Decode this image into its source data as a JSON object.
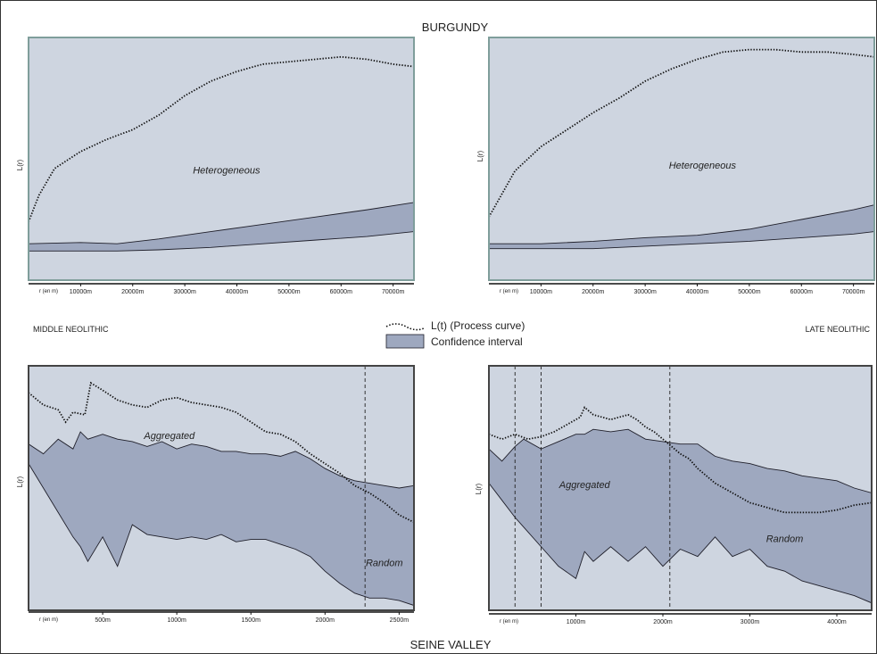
{
  "titles": {
    "top": "BURGUNDY",
    "bottom": "SEINE VALLEY",
    "period_left": "MIDDLE NEOLITHIC",
    "period_right": "LATE NEOLITHIC"
  },
  "legend": {
    "curve_label": "L(t) (Process curve)",
    "band_label": "Confidence interval"
  },
  "colors": {
    "plot_bg": "#ced5e0",
    "band_fill": "#9ea8bf",
    "band_stroke": "#1f1f2a",
    "frame_top": "#7f9e9b",
    "frame_bottom": "#444444"
  },
  "chart_data": [
    {
      "id": "burgundy-middle",
      "type": "area",
      "title": "",
      "ylabel": "L(r)",
      "x_unit_label": "r (en m)",
      "xlim": [
        0,
        74000
      ],
      "ylim": [
        0,
        100
      ],
      "ticks": [
        10000,
        20000,
        30000,
        40000,
        50000,
        60000,
        70000
      ],
      "tick_labels": [
        "10000m",
        "20000m",
        "30000m",
        "40000m",
        "50000m",
        "60000m",
        "70000m"
      ],
      "annotations": [
        {
          "text": "Heterogeneous",
          "x": 38000,
          "y": 44
        }
      ],
      "dashed_lines": [],
      "series": [
        {
          "name": "L(t) (Process curve)",
          "x": [
            0,
            2000,
            5000,
            10000,
            15000,
            20000,
            25000,
            30000,
            35000,
            40000,
            45000,
            50000,
            55000,
            60000,
            65000,
            70000,
            74000
          ],
          "y": [
            24,
            35,
            46,
            53,
            58,
            62,
            68,
            76,
            82,
            86,
            89,
            90,
            91,
            92,
            91,
            89,
            88
          ]
        },
        {
          "name": "Confidence interval",
          "x": [
            0,
            10000,
            17000,
            25000,
            35000,
            45000,
            55000,
            65000,
            74000
          ],
          "upper": [
            15,
            15.5,
            15,
            17,
            20,
            23,
            26,
            29,
            32
          ],
          "lower": [
            12,
            12,
            12,
            12.5,
            13.5,
            15,
            16.5,
            18,
            20
          ]
        }
      ]
    },
    {
      "id": "burgundy-late",
      "type": "area",
      "title": "",
      "ylabel": "L(r)",
      "x_unit_label": "r (en m)",
      "xlim": [
        0,
        74000
      ],
      "ylim": [
        0,
        100
      ],
      "ticks": [
        10000,
        20000,
        30000,
        40000,
        50000,
        60000,
        70000
      ],
      "tick_labels": [
        "10000m",
        "20000m",
        "30000m",
        "40000m",
        "50000m",
        "60000m",
        "70000m"
      ],
      "annotations": [
        {
          "text": "Heterogeneous",
          "x": 41000,
          "y": 46
        }
      ],
      "dashed_lines": [],
      "series": [
        {
          "name": "L(t) (Process curve)",
          "x": [
            0,
            5000,
            10000,
            15000,
            20000,
            25000,
            30000,
            35000,
            40000,
            45000,
            50000,
            55000,
            60000,
            65000,
            70000,
            74000
          ],
          "y": [
            26,
            45,
            55,
            62,
            69,
            75,
            82,
            87,
            91,
            94,
            95,
            95,
            94,
            94,
            93,
            92
          ]
        },
        {
          "name": "Confidence interval",
          "x": [
            0,
            10000,
            20000,
            30000,
            40000,
            50000,
            60000,
            70000,
            74000
          ],
          "upper": [
            15,
            15,
            16,
            17.5,
            18.5,
            21,
            25,
            29,
            31
          ],
          "lower": [
            13,
            13,
            13,
            14,
            15,
            16,
            17.5,
            19,
            20
          ]
        }
      ]
    },
    {
      "id": "seine-middle",
      "type": "area",
      "title": "",
      "ylabel": "L(r)",
      "x_unit_label": "r (en m)",
      "xlim": [
        0,
        2600
      ],
      "ylim": [
        0,
        100
      ],
      "ticks": [
        500,
        1000,
        1500,
        2000,
        2500
      ],
      "tick_labels": [
        "500m",
        "1000m",
        "1500m",
        "2000m",
        "2500m"
      ],
      "annotations": [
        {
          "text": "Aggregated",
          "x": 950,
          "y": 70
        },
        {
          "text": "Random",
          "x": 2400,
          "y": 18
        }
      ],
      "dashed_lines": [
        2270
      ],
      "series": [
        {
          "name": "L(t) (Process curve)",
          "x": [
            0,
            100,
            200,
            250,
            300,
            380,
            420,
            500,
            600,
            700,
            800,
            900,
            1000,
            1100,
            1200,
            1300,
            1400,
            1500,
            1600,
            1700,
            1800,
            1900,
            2000,
            2100,
            2200,
            2300,
            2400,
            2500,
            2600
          ],
          "y": [
            89,
            84,
            82,
            77,
            81,
            80,
            93,
            90,
            86,
            84,
            83,
            86,
            87,
            85,
            84,
            83,
            81,
            77,
            73,
            72,
            69,
            64,
            60,
            56,
            51,
            48,
            44,
            39,
            36
          ]
        },
        {
          "name": "Confidence interval",
          "x": [
            0,
            100,
            200,
            300,
            350,
            400,
            500,
            600,
            700,
            800,
            900,
            1000,
            1100,
            1200,
            1300,
            1400,
            1500,
            1600,
            1700,
            1800,
            1900,
            2000,
            2100,
            2200,
            2300,
            2400,
            2500,
            2600
          ],
          "upper": [
            68,
            64,
            70,
            66,
            73,
            70,
            72,
            70,
            69,
            67,
            69,
            66,
            68,
            67,
            65,
            65,
            64,
            64,
            63,
            65,
            62,
            58,
            55,
            53,
            52,
            51,
            50,
            51
          ],
          "lower": [
            60,
            50,
            40,
            30,
            26,
            20,
            30,
            18,
            35,
            31,
            30,
            29,
            30,
            29,
            31,
            28,
            29,
            29,
            27,
            25,
            22,
            16,
            11,
            7,
            5,
            5,
            4,
            2
          ]
        }
      ]
    },
    {
      "id": "seine-late",
      "type": "area",
      "title": "",
      "ylabel": "L(r)",
      "x_unit_label": "r (en m)",
      "xlim": [
        0,
        4400
      ],
      "ylim": [
        0,
        100
      ],
      "ticks": [
        1000,
        2000,
        3000,
        4000
      ],
      "tick_labels": [
        "1000m",
        "2000m",
        "3000m",
        "4000m"
      ],
      "annotations": [
        {
          "text": "Aggregated",
          "x": 1100,
          "y": 50
        },
        {
          "text": "Random",
          "x": 3400,
          "y": 28
        }
      ],
      "dashed_lines": [
        300,
        600,
        2080
      ],
      "series": [
        {
          "name": "L(t) (Process curve)",
          "x": [
            0,
            150,
            300,
            450,
            600,
            750,
            900,
            1050,
            1100,
            1200,
            1300,
            1400,
            1500,
            1600,
            1700,
            1800,
            1900,
            2000,
            2100,
            2200,
            2300,
            2400,
            2600,
            2800,
            3000,
            3200,
            3400,
            3600,
            3800,
            4000,
            4200,
            4400
          ],
          "y": [
            72,
            70,
            72,
            70,
            71,
            73,
            76,
            79,
            83,
            80,
            79,
            78,
            79,
            80,
            78,
            75,
            73,
            70,
            67,
            64,
            62,
            58,
            52,
            48,
            44,
            42,
            40,
            40,
            40,
            41,
            43,
            44
          ]
        },
        {
          "name": "Confidence interval",
          "x": [
            0,
            150,
            300,
            400,
            600,
            800,
            1000,
            1100,
            1200,
            1400,
            1600,
            1800,
            2000,
            2200,
            2400,
            2600,
            2800,
            3000,
            3200,
            3400,
            3600,
            3800,
            4000,
            4200,
            4400
          ],
          "upper": [
            66,
            61,
            67,
            70,
            66,
            69,
            72,
            72,
            74,
            73,
            74,
            70,
            69,
            68,
            68,
            63,
            61,
            60,
            58,
            57,
            55,
            54,
            53,
            50,
            48
          ],
          "lower": [
            52,
            45,
            38,
            34,
            26,
            18,
            13,
            24,
            20,
            26,
            20,
            26,
            18,
            25,
            22,
            30,
            22,
            25,
            18,
            16,
            12,
            10,
            8,
            6,
            3
          ]
        }
      ]
    }
  ]
}
